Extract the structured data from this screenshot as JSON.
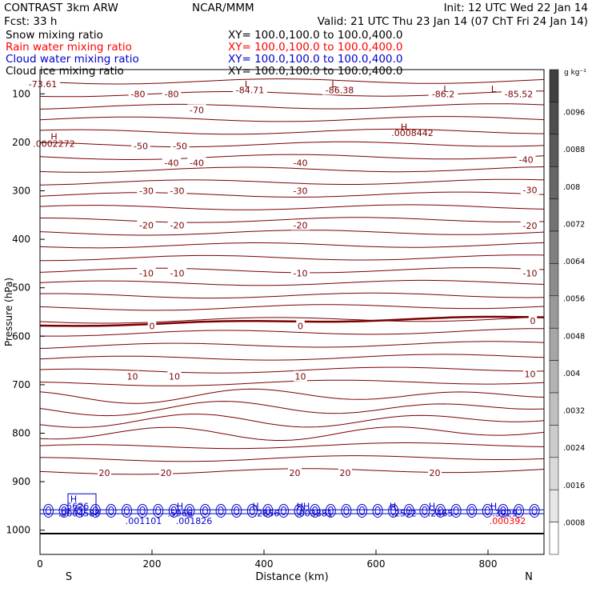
{
  "header": {
    "model": "CONTRAST  3km ARW",
    "center": "NCAR/MMM",
    "init": "Init: 12 UTC Wed 22 Jan 14",
    "fcst": "Fcst:   33 h",
    "valid": "Valid: 21 UTC Thu 23 Jan 14 (07 ChT Fri 24 Jan 14)"
  },
  "fields": [
    {
      "name": "Snow mixing ratio",
      "xy": "XY= 100.0,100.0 to 100.0,400.0",
      "color": "#000000"
    },
    {
      "name": "Rain water mixing ratio",
      "xy": "XY= 100.0,100.0 to 100.0,400.0",
      "color": "#ff0000"
    },
    {
      "name": "Cloud water mixing ratio",
      "xy": "XY= 100.0,100.0 to 100.0,400.0",
      "color": "#0000cc"
    },
    {
      "name": "Cloud ice mixing ratio",
      "xy": "XY= 100.0,100.0 to 100.0,400.0",
      "color": "#000000"
    }
  ],
  "chart_data": {
    "type": "cross-section contour",
    "xlabel": "Distance (km)",
    "ylabel": "Pressure (hPa)",
    "xlim": [
      0,
      900
    ],
    "ylim": [
      1050,
      50
    ],
    "x_ticks": [
      "0",
      "200",
      "400",
      "600",
      "800"
    ],
    "x_tick_values": [
      0,
      200,
      400,
      600,
      800
    ],
    "y_ticks": [
      "100",
      "200",
      "300",
      "400",
      "500",
      "600",
      "700",
      "800",
      "900",
      "1000"
    ],
    "y_tick_values": [
      100,
      200,
      300,
      400,
      500,
      600,
      700,
      800,
      900,
      1000
    ],
    "endpoints": {
      "left": "S",
      "right": "N"
    },
    "temperature_contour_color": "#7a0000",
    "freezing_line_color": "#7a0000",
    "cloud_water_color": "#0000cc",
    "temperature_labels": [
      {
        "text": "-73.61",
        "x": 5,
        "p": 80
      },
      {
        "text": "-84.71",
        "x": 375,
        "p": 92
      },
      {
        "text": "-86.38",
        "x": 535,
        "p": 92
      },
      {
        "text": "-86.2",
        "x": 720,
        "p": 100
      },
      {
        "text": "-85.52",
        "x": 855,
        "p": 100
      },
      {
        "text": "-80",
        "x": 175,
        "p": 100
      },
      {
        "text": "-80",
        "x": 235,
        "p": 100
      },
      {
        "text": "-70",
        "x": 280,
        "p": 133
      },
      {
        "text": "-50",
        "x": 180,
        "p": 208
      },
      {
        "text": "-50",
        "x": 250,
        "p": 208
      },
      {
        "text": "-40",
        "x": 235,
        "p": 242
      },
      {
        "text": "-40",
        "x": 280,
        "p": 242
      },
      {
        "text": "-40",
        "x": 465,
        "p": 242
      },
      {
        "text": "-40",
        "x": 868,
        "p": 236
      },
      {
        "text": "-30",
        "x": 190,
        "p": 300
      },
      {
        "text": "-30",
        "x": 245,
        "p": 300
      },
      {
        "text": "-30",
        "x": 465,
        "p": 300
      },
      {
        "text": "-30",
        "x": 875,
        "p": 298
      },
      {
        "text": "-20",
        "x": 190,
        "p": 371
      },
      {
        "text": "-20",
        "x": 245,
        "p": 371
      },
      {
        "text": "-20",
        "x": 465,
        "p": 371
      },
      {
        "text": "-20",
        "x": 875,
        "p": 372
      },
      {
        "text": "-10",
        "x": 190,
        "p": 470
      },
      {
        "text": "-10",
        "x": 245,
        "p": 470
      },
      {
        "text": "-10",
        "x": 465,
        "p": 470
      },
      {
        "text": "-10",
        "x": 875,
        "p": 470
      },
      {
        "text": "0",
        "x": 200,
        "p": 579
      },
      {
        "text": "0",
        "x": 465,
        "p": 579
      },
      {
        "text": "0",
        "x": 880,
        "p": 568
      },
      {
        "text": "10",
        "x": 165,
        "p": 683
      },
      {
        "text": "10",
        "x": 240,
        "p": 683
      },
      {
        "text": "10",
        "x": 465,
        "p": 683
      },
      {
        "text": "10",
        "x": 875,
        "p": 678
      },
      {
        "text": "20",
        "x": 115,
        "p": 882
      },
      {
        "text": "20",
        "x": 225,
        "p": 882
      },
      {
        "text": "20",
        "x": 455,
        "p": 882
      },
      {
        "text": "20",
        "x": 545,
        "p": 882
      },
      {
        "text": "20",
        "x": 705,
        "p": 882
      }
    ],
    "extrema_labels": [
      {
        "text": "L",
        "x": 370,
        "p": 80
      },
      {
        "text": "L",
        "x": 525,
        "p": 80
      },
      {
        "text": "L",
        "x": 725,
        "p": 90
      },
      {
        "text": "L",
        "x": 810,
        "p": 90
      },
      {
        "text": "H",
        "x": 25,
        "p": 188
      },
      {
        "text": ".0002272",
        "x": 25,
        "p": 203
      },
      {
        "text": "H",
        "x": 650,
        "p": 168
      },
      {
        "text": ".0008442",
        "x": 665,
        "p": 180
      },
      {
        "text": "H",
        "x": 60,
        "p": 935
      },
      {
        "text": ".5626",
        "x": 65,
        "p": 950
      },
      {
        "text": ".0004588",
        "x": 70,
        "p": 965
      },
      {
        "text": "H",
        "x": 250,
        "p": 950
      },
      {
        "text": ".5966",
        "x": 250,
        "p": 965
      },
      {
        "text": ".001101",
        "x": 185,
        "p": 981
      },
      {
        "text": ".001826",
        "x": 275,
        "p": 981
      },
      {
        "text": "H",
        "x": 385,
        "p": 950
      },
      {
        "text": ".2856",
        "x": 405,
        "p": 965
      },
      {
        "text": "HH",
        "x": 470,
        "p": 950
      },
      {
        "text": ".003881",
        "x": 490,
        "p": 965
      },
      {
        "text": "H",
        "x": 630,
        "p": 950
      },
      {
        "text": ".2572",
        "x": 650,
        "p": 965
      },
      {
        "text": "H",
        "x": 700,
        "p": 950
      },
      {
        "text": ".2465",
        "x": 715,
        "p": 965
      },
      {
        "text": "H",
        "x": 810,
        "p": 950
      },
      {
        "text": ".3929",
        "x": 830,
        "p": 965
      },
      {
        "text": ".000392",
        "x": 835,
        "p": 981
      }
    ],
    "colorbar": {
      "unit": "g kg⁻¹",
      "labels": [
        ".0096",
        ".0088",
        ".008",
        ".0072",
        ".0064",
        ".0056",
        ".0048",
        ".004",
        ".0032",
        ".0024",
        ".0016",
        ".0008"
      ],
      "label_values": [
        0.0096,
        0.0088,
        0.008,
        0.0072,
        0.0064,
        0.0056,
        0.0048,
        0.004,
        0.0032,
        0.0024,
        0.0016,
        0.0008
      ],
      "colors": [
        "#404040",
        "#4d4d4d",
        "#595959",
        "#666666",
        "#737373",
        "#808080",
        "#8c8c8c",
        "#999999",
        "#a6a6a6",
        "#b3b3b3",
        "#c0c0c0",
        "#cccccc",
        "#d9d9d9",
        "#e6e6e6",
        "#ffffff"
      ]
    }
  }
}
